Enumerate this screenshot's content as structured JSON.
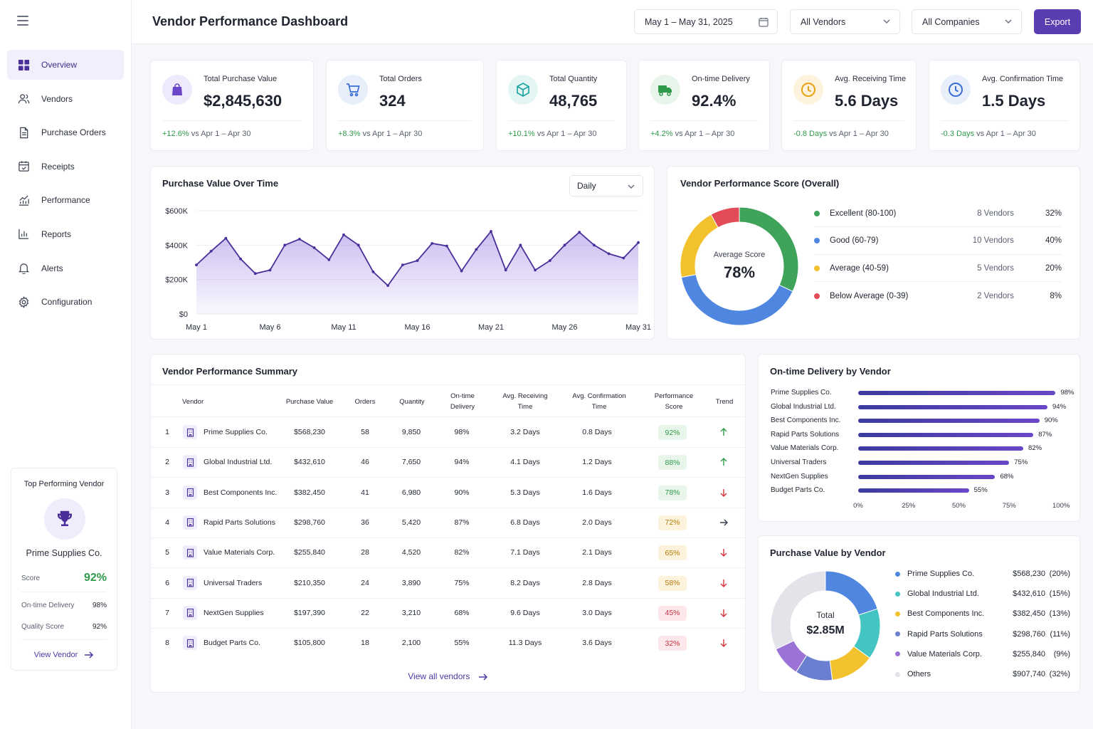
{
  "header": {
    "title": "Vendor Performance Dashboard",
    "date_range": "May 1 – May 31, 2025",
    "vendor_filter": "All Vendors",
    "company_filter": "All Companies",
    "export_label": "Export"
  },
  "sidebar": {
    "items": [
      {
        "label": "Overview",
        "icon": "grid-icon",
        "active": true
      },
      {
        "label": "Vendors",
        "icon": "users-icon"
      },
      {
        "label": "Purchase Orders",
        "icon": "document-icon"
      },
      {
        "label": "Receipts",
        "icon": "calendar-check-icon"
      },
      {
        "label": "Performance",
        "icon": "trend-chart-icon"
      },
      {
        "label": "Reports",
        "icon": "bar-chart-icon"
      },
      {
        "label": "Alerts",
        "icon": "bell-icon"
      },
      {
        "label": "Configuration",
        "icon": "gear-icon"
      }
    ],
    "top_vendor": {
      "title": "Top Performing Vendor",
      "name": "Prime Supplies Co.",
      "score_label": "Score",
      "score": "92%",
      "on_time_label": "On-time Delivery",
      "on_time": "98%",
      "quality_label": "Quality Score",
      "quality": "92%",
      "link": "View Vendor"
    }
  },
  "kpis": [
    {
      "label": "Total Purchase Value",
      "value": "$2,845,630",
      "delta": "+12.6%",
      "compare": "vs Apr 1 – Apr 30",
      "icon": "shopping-bag-icon",
      "color": "#6a46c8"
    },
    {
      "label": "Total Orders",
      "value": "324",
      "delta": "+8.3%",
      "compare": "vs Apr 1 – Apr 30",
      "icon": "shopping-cart-icon",
      "color": "#3b6fd6"
    },
    {
      "label": "Total Quantity",
      "value": "48,765",
      "delta": "+10.1%",
      "compare": "vs Apr 1 – Apr 30",
      "icon": "box-icon",
      "color": "#1fa5a0"
    },
    {
      "label": "On-time Delivery",
      "value": "92.4%",
      "delta": "+4.2%",
      "compare": "vs Apr 1 – Apr 30",
      "icon": "truck-icon",
      "color": "#2f9a4a"
    },
    {
      "label": "Avg. Receiving Time",
      "value": "5.6 Days",
      "delta": "-0.8 Days",
      "compare": "vs Apr 1 – Apr 30",
      "icon": "clock-icon",
      "color": "#e8a312"
    },
    {
      "label": "Avg. Confirmation Time",
      "value": "1.5 Days",
      "delta": "-0.3 Days",
      "compare": "vs Apr 1 – Apr 30",
      "icon": "clock-icon",
      "color": "#3b6fd6"
    }
  ],
  "line_chart": {
    "title": "Purchase Value Over Time",
    "granularity": "Daily"
  },
  "score_donut": {
    "title": "Vendor Performance Score (Overall)",
    "center_label": "Average Score",
    "center_value": "78%",
    "segments": [
      {
        "label": "Excellent (80-100)",
        "count": "8 Vendors",
        "pct": "32%",
        "value": 32,
        "color": "#3fa35a"
      },
      {
        "label": "Good (60-79)",
        "count": "10 Vendors",
        "pct": "40%",
        "value": 40,
        "color": "#4f86e0"
      },
      {
        "label": "Average (40-59)",
        "count": "5 Vendors",
        "pct": "20%",
        "value": 20,
        "color": "#f2c12e"
      },
      {
        "label": "Below Average (0-39)",
        "count": "2 Vendors",
        "pct": "8%",
        "value": 8,
        "color": "#e24b57"
      }
    ]
  },
  "summary_table": {
    "title": "Vendor Performance Summary",
    "columns": [
      "Vendor",
      "Purchase Value",
      "Orders",
      "Quantity",
      "On-time\nDelivery",
      "Avg. Receiving\nTime",
      "Avg. Confirmation\nTime",
      "Performance\nScore",
      "Trend"
    ],
    "rows": [
      {
        "rank": "1",
        "vendor": "Prime Supplies Co.",
        "value": "$568,230",
        "orders": "58",
        "qty": "9,850",
        "ontime": "98%",
        "recv": "3.2 Days",
        "conf": "0.8 Days",
        "score": "92%",
        "level": "high",
        "trend": "up"
      },
      {
        "rank": "2",
        "vendor": "Global Industrial Ltd.",
        "value": "$432,610",
        "orders": "46",
        "qty": "7,650",
        "ontime": "94%",
        "recv": "4.1 Days",
        "conf": "1.2 Days",
        "score": "88%",
        "level": "high",
        "trend": "up"
      },
      {
        "rank": "3",
        "vendor": "Best Components Inc.",
        "value": "$382,450",
        "orders": "41",
        "qty": "6,980",
        "ontime": "90%",
        "recv": "5.3 Days",
        "conf": "1.6 Days",
        "score": "78%",
        "level": "high",
        "trend": "down"
      },
      {
        "rank": "4",
        "vendor": "Rapid Parts Solutions",
        "value": "$298,760",
        "orders": "36",
        "qty": "5,420",
        "ontime": "87%",
        "recv": "6.8 Days",
        "conf": "2.0 Days",
        "score": "72%",
        "level": "mid",
        "trend": "flat"
      },
      {
        "rank": "5",
        "vendor": "Value Materials Corp.",
        "value": "$255,840",
        "orders": "28",
        "qty": "4,520",
        "ontime": "82%",
        "recv": "7.1 Days",
        "conf": "2.1 Days",
        "score": "65%",
        "level": "mid",
        "trend": "down"
      },
      {
        "rank": "6",
        "vendor": "Universal Traders",
        "value": "$210,350",
        "orders": "24",
        "qty": "3,890",
        "ontime": "75%",
        "recv": "8.2 Days",
        "conf": "2.8 Days",
        "score": "58%",
        "level": "mid",
        "trend": "down"
      },
      {
        "rank": "7",
        "vendor": "NextGen Supplies",
        "value": "$197,390",
        "orders": "22",
        "qty": "3,210",
        "ontime": "68%",
        "recv": "9.6 Days",
        "conf": "3.0 Days",
        "score": "45%",
        "level": "low",
        "trend": "down"
      },
      {
        "rank": "8",
        "vendor": "Budget Parts Co.",
        "value": "$105,800",
        "orders": "18",
        "qty": "2,100",
        "ontime": "55%",
        "recv": "11.3 Days",
        "conf": "3.6 Days",
        "score": "32%",
        "level": "low",
        "trend": "down"
      }
    ],
    "view_all": "View all vendors"
  },
  "ontime_bars": {
    "title": "On-time Delivery by Vendor"
  },
  "pv_donut": {
    "title": "Purchase Value by Vendor",
    "center_label": "Total",
    "center_value": "$2.85M",
    "items": [
      {
        "label": "Prime Supplies Co.",
        "value": "$568,230",
        "pct": "(20%)",
        "share": 20,
        "color": "#4f86e0"
      },
      {
        "label": "Global Industrial Ltd.",
        "value": "$432,610",
        "pct": "(15%)",
        "share": 15,
        "color": "#45c4c4"
      },
      {
        "label": "Best Components Inc.",
        "value": "$382,450",
        "pct": "(13%)",
        "share": 13,
        "color": "#f2c12e"
      },
      {
        "label": "Rapid Parts Solutions",
        "value": "$298,760",
        "pct": "(11%)",
        "share": 11,
        "color": "#6a7fd0"
      },
      {
        "label": "Value Materials Corp.",
        "value": "$255,840",
        "pct": "(9%)",
        "share": 9,
        "color": "#9b72d6"
      },
      {
        "label": "Others",
        "value": "$907,740",
        "pct": "(32%)",
        "share": 32,
        "color": "#e3e4ea"
      }
    ]
  },
  "chart_data": [
    {
      "type": "area",
      "title": "Purchase Value Over Time",
      "x": [
        "May 1",
        "May 2",
        "May 3",
        "May 4",
        "May 5",
        "May 6",
        "May 7",
        "May 8",
        "May 9",
        "May 10",
        "May 11",
        "May 12",
        "May 13",
        "May 14",
        "May 15",
        "May 16",
        "May 17",
        "May 18",
        "May 19",
        "May 20",
        "May 21",
        "May 22",
        "May 23",
        "May 24",
        "May 25",
        "May 26",
        "May 27",
        "May 28",
        "May 29",
        "May 30",
        "May 31"
      ],
      "x_tick_labels": [
        "May 1",
        "May 6",
        "May 11",
        "May 16",
        "May 21",
        "May 26",
        "May 31"
      ],
      "values": [
        285000,
        365000,
        440000,
        320000,
        235000,
        255000,
        400000,
        435000,
        385000,
        315000,
        460000,
        400000,
        245000,
        165000,
        285000,
        310000,
        410000,
        395000,
        250000,
        375000,
        480000,
        255000,
        400000,
        255000,
        310000,
        400000,
        475000,
        400000,
        350000,
        325000,
        415000
      ],
      "y_ticks": [
        "$0",
        "$200K",
        "$400K",
        "$600K"
      ],
      "ylim": [
        0,
        600000
      ]
    },
    {
      "type": "pie",
      "title": "Vendor Performance Score (Overall)",
      "categories": [
        "Excellent (80-100)",
        "Good (60-79)",
        "Average (40-59)",
        "Below Average (0-39)"
      ],
      "values": [
        32,
        40,
        20,
        8
      ]
    },
    {
      "type": "bar",
      "title": "On-time Delivery by Vendor",
      "categories": [
        "Prime Supplies Co.",
        "Global Industrial Ltd.",
        "Best Components Inc.",
        "Rapid Parts Solutions",
        "Value Materials Corp.",
        "Universal Traders",
        "NextGen Supplies",
        "Budget Parts Co."
      ],
      "values": [
        98,
        94,
        90,
        87,
        82,
        75,
        68,
        55
      ],
      "x_ticks": [
        "0%",
        "25%",
        "50%",
        "75%",
        "100%"
      ],
      "xlim": [
        0,
        100
      ]
    },
    {
      "type": "pie",
      "title": "Purchase Value by Vendor",
      "categories": [
        "Prime Supplies Co.",
        "Global Industrial Ltd.",
        "Best Components Inc.",
        "Rapid Parts Solutions",
        "Value Materials Corp.",
        "Others"
      ],
      "values": [
        568230,
        432610,
        382450,
        298760,
        255840,
        907740
      ]
    }
  ]
}
